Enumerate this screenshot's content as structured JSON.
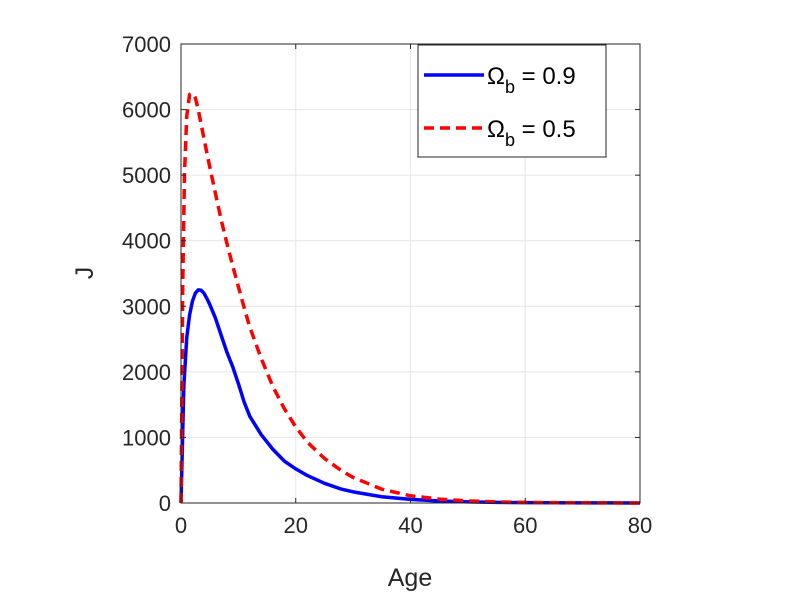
{
  "chart_data": {
    "type": "line",
    "title": "",
    "xlabel": "Age",
    "ylabel": "J",
    "xlim": [
      0,
      80
    ],
    "ylim": [
      0,
      7000
    ],
    "xticks": [
      0,
      20,
      40,
      60,
      80
    ],
    "yticks": [
      0,
      1000,
      2000,
      3000,
      4000,
      5000,
      6000,
      7000
    ],
    "grid": true,
    "legend_position": "top-right",
    "series": [
      {
        "name": "Ω_b = 0.9",
        "legend_symbol": "Ω",
        "legend_subscript": "b",
        "legend_value": " = 0.9",
        "color": "#0000ff",
        "line_style": "solid",
        "x": [
          0,
          0.5,
          1,
          1.5,
          2,
          2.5,
          3,
          3.5,
          4,
          4.5,
          5,
          6,
          7,
          8,
          9,
          10,
          11,
          12,
          14,
          16,
          18,
          20,
          22,
          25,
          28,
          30,
          35,
          40,
          45,
          50,
          55,
          60,
          65,
          70,
          75,
          80
        ],
        "y": [
          0,
          1800,
          2520,
          2870,
          3080,
          3200,
          3250,
          3245,
          3200,
          3120,
          3030,
          2820,
          2560,
          2300,
          2080,
          1820,
          1540,
          1320,
          1040,
          820,
          640,
          520,
          420,
          300,
          210,
          170,
          95,
          55,
          30,
          17,
          10,
          6,
          4,
          2,
          1,
          0
        ]
      },
      {
        "name": "Ω_b = 0.5",
        "legend_symbol": "Ω",
        "legend_subscript": "b",
        "legend_value": " = 0.5",
        "color": "#ff0000",
        "line_style": "dashed",
        "x": [
          0,
          0.3,
          0.6,
          1,
          1.5,
          2,
          2.5,
          3,
          3.5,
          4,
          5,
          6,
          7,
          8,
          9,
          10,
          11,
          12,
          14,
          16,
          18,
          20,
          22,
          25,
          28,
          30,
          35,
          40,
          45,
          50,
          55,
          60,
          65,
          70,
          75,
          80
        ],
        "y": [
          0,
          3300,
          5000,
          5900,
          6230,
          6250,
          6180,
          6000,
          5780,
          5560,
          5130,
          4720,
          4320,
          3960,
          3620,
          3300,
          2980,
          2680,
          2200,
          1780,
          1440,
          1160,
          930,
          680,
          490,
          390,
          210,
          110,
          60,
          32,
          17,
          9,
          5,
          3,
          1,
          0
        ]
      }
    ]
  }
}
